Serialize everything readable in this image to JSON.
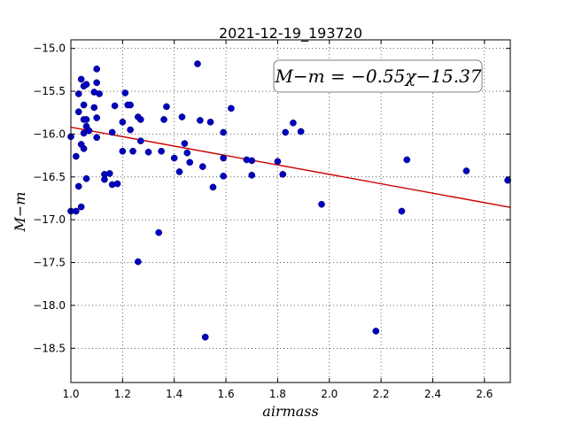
{
  "chart_data": {
    "type": "scatter",
    "title": "2021-12-19_193720",
    "xlabel": "airmass",
    "ylabel": "M−m",
    "xlim": [
      1.0,
      2.7
    ],
    "ylim": [
      -14.9,
      -18.9
    ],
    "y_inverted": true,
    "xticks": [
      "1.0",
      "1.2",
      "1.4",
      "1.6",
      "1.8",
      "2.0",
      "2.2",
      "2.4",
      "2.6"
    ],
    "yticks": [
      "−15.0",
      "−15.5",
      "−16.0",
      "−16.5",
      "−17.0",
      "−17.5",
      "−18.0",
      "−18.5"
    ],
    "grid": true,
    "annotation": "M−m = −0.55χ−15.37",
    "annotation_position": "top-right",
    "point_color": "#0000bf",
    "fit_color": "#cc0000",
    "fit_line": {
      "slope": -0.55,
      "intercept": -15.37
    },
    "points": [
      [
        1.0,
        -16.03
      ],
      [
        1.0,
        -16.9
      ],
      [
        1.02,
        -16.26
      ],
      [
        1.02,
        -16.9
      ],
      [
        1.03,
        -15.53
      ],
      [
        1.03,
        -15.74
      ],
      [
        1.03,
        -16.61
      ],
      [
        1.04,
        -15.36
      ],
      [
        1.04,
        -16.85
      ],
      [
        1.04,
        -16.12
      ],
      [
        1.05,
        -15.66
      ],
      [
        1.05,
        -15.83
      ],
      [
        1.05,
        -15.44
      ],
      [
        1.05,
        -15.99
      ],
      [
        1.05,
        -16.17
      ],
      [
        1.06,
        -15.42
      ],
      [
        1.06,
        -15.83
      ],
      [
        1.06,
        -15.91
      ],
      [
        1.06,
        -16.52
      ],
      [
        1.07,
        -15.96
      ],
      [
        1.09,
        -15.51
      ],
      [
        1.09,
        -15.69
      ],
      [
        1.1,
        -15.24
      ],
      [
        1.1,
        -15.81
      ],
      [
        1.1,
        -16.04
      ],
      [
        1.1,
        -15.4
      ],
      [
        1.11,
        -15.53
      ],
      [
        1.13,
        -16.47
      ],
      [
        1.13,
        -16.53
      ],
      [
        1.15,
        -16.46
      ],
      [
        1.16,
        -15.98
      ],
      [
        1.16,
        -16.59
      ],
      [
        1.17,
        -15.67
      ],
      [
        1.18,
        -16.58
      ],
      [
        1.2,
        -15.86
      ],
      [
        1.2,
        -16.2
      ],
      [
        1.21,
        -15.52
      ],
      [
        1.22,
        -15.66
      ],
      [
        1.23,
        -15.95
      ],
      [
        1.23,
        -15.66
      ],
      [
        1.24,
        -16.2
      ],
      [
        1.26,
        -17.49
      ],
      [
        1.26,
        -15.8
      ],
      [
        1.27,
        -15.83
      ],
      [
        1.27,
        -16.08
      ],
      [
        1.3,
        -16.21
      ],
      [
        1.34,
        -17.15
      ],
      [
        1.35,
        -16.2
      ],
      [
        1.36,
        -15.83
      ],
      [
        1.37,
        -15.68
      ],
      [
        1.4,
        -16.28
      ],
      [
        1.42,
        -16.44
      ],
      [
        1.43,
        -15.8
      ],
      [
        1.44,
        -16.11
      ],
      [
        1.45,
        -16.22
      ],
      [
        1.46,
        -16.33
      ],
      [
        1.49,
        -15.18
      ],
      [
        1.5,
        -15.84
      ],
      [
        1.51,
        -16.38
      ],
      [
        1.52,
        -18.37
      ],
      [
        1.54,
        -15.86
      ],
      [
        1.55,
        -16.62
      ],
      [
        1.59,
        -15.98
      ],
      [
        1.59,
        -16.28
      ],
      [
        1.59,
        -16.49
      ],
      [
        1.62,
        -15.7
      ],
      [
        1.68,
        -16.3
      ],
      [
        1.7,
        -16.31
      ],
      [
        1.7,
        -16.48
      ],
      [
        1.8,
        -16.32
      ],
      [
        1.82,
        -16.47
      ],
      [
        1.83,
        -15.98
      ],
      [
        1.86,
        -15.87
      ],
      [
        1.89,
        -15.97
      ],
      [
        1.97,
        -16.82
      ],
      [
        2.18,
        -18.3
      ],
      [
        2.28,
        -16.9
      ],
      [
        2.3,
        -16.3
      ],
      [
        2.53,
        -16.43
      ],
      [
        2.69,
        -16.54
      ]
    ]
  }
}
